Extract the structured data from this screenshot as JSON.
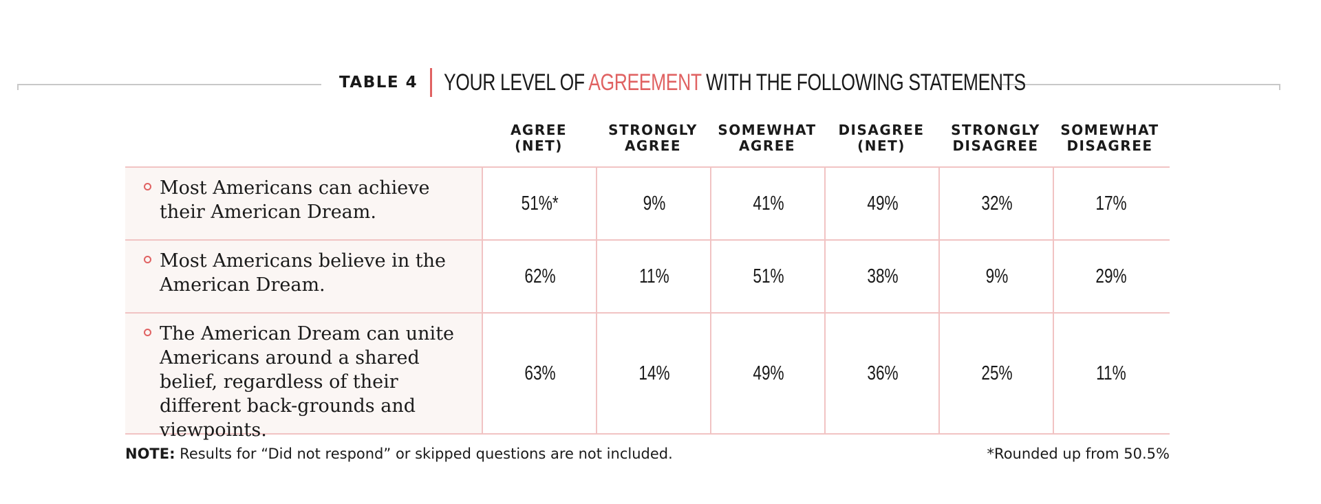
{
  "title": {
    "label": "TABLE 4",
    "prefix": "YOUR LEVEL OF ",
    "highlight": "AGREEMENT",
    "suffix": " WITH THE FOLLOWING STATEMENTS",
    "accent_color": "#e06262"
  },
  "columns": [
    {
      "line1": "AGREE",
      "line2": "(NET)"
    },
    {
      "line1": "STRONGLY",
      "line2": "AGREE"
    },
    {
      "line1": "SOMEWHAT",
      "line2": "AGREE"
    },
    {
      "line1": "DISAGREE",
      "line2": "(NET)"
    },
    {
      "line1": "STRONGLY",
      "line2": "DISAGREE"
    },
    {
      "line1": "SOMEWHAT",
      "line2": "DISAGREE"
    }
  ],
  "rows": [
    {
      "statement": "Most Americans can achieve their American Dream.",
      "values": [
        "51%*",
        "9%",
        "41%",
        "49%",
        "32%",
        "17%"
      ]
    },
    {
      "statement": "Most Americans believe in the American Dream.",
      "values": [
        "62%",
        "11%",
        "51%",
        "38%",
        "9%",
        "29%"
      ]
    },
    {
      "statement": "The American Dream can unite Americans around a shared belief, regardless of their different back-grounds and viewpoints.",
      "values": [
        "63%",
        "14%",
        "49%",
        "36%",
        "25%",
        "11%"
      ]
    }
  ],
  "footer": {
    "note_label": "NOTE:",
    "note_text": " Results for “Did not respond” or skipped questions are not included.",
    "footnote": "*Rounded up from 50.5%"
  }
}
